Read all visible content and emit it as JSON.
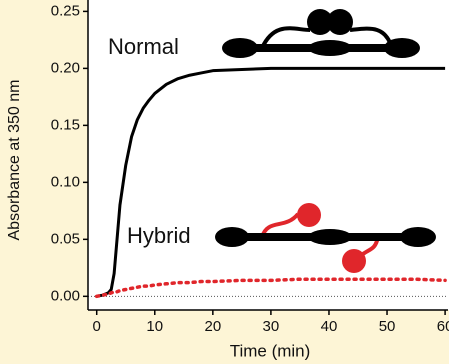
{
  "chart_data": {
    "type": "line",
    "x_label": "Time  (min)",
    "y_label": "Absorbance at 350 nm",
    "x": [
      0,
      1,
      2,
      2.5,
      3,
      3.5,
      4,
      5,
      6,
      7,
      8,
      9,
      10,
      12,
      14,
      16,
      18,
      20,
      25,
      30,
      35,
      40,
      45,
      50,
      55,
      60
    ],
    "series": [
      {
        "name": "Normal",
        "color": "#000000",
        "style": "solid",
        "values": [
          0.0,
          0.001,
          0.003,
          0.006,
          0.02,
          0.05,
          0.08,
          0.115,
          0.14,
          0.155,
          0.165,
          0.172,
          0.178,
          0.186,
          0.191,
          0.194,
          0.196,
          0.198,
          0.199,
          0.2,
          0.2,
          0.2,
          0.2,
          0.2,
          0.2,
          0.2
        ]
      },
      {
        "name": "Hybrid",
        "color": "#e0262b",
        "style": "dotted",
        "values": [
          0.0,
          0.001,
          0.002,
          0.003,
          0.004,
          0.004,
          0.005,
          0.006,
          0.007,
          0.008,
          0.009,
          0.009,
          0.01,
          0.011,
          0.012,
          0.012,
          0.013,
          0.013,
          0.014,
          0.014,
          0.015,
          0.015,
          0.015,
          0.015,
          0.015,
          0.014
        ]
      }
    ],
    "xlim": [
      -1.5,
      60.5
    ],
    "ylim": [
      -0.012,
      0.26
    ],
    "xticks": [
      0,
      10,
      20,
      30,
      40,
      50,
      60
    ],
    "yticks": [
      {
        "value": 0,
        "label": "0.00"
      },
      {
        "value": 0.05,
        "label": "0.05"
      },
      {
        "value": 0.1,
        "label": "0.10"
      },
      {
        "value": 0.15,
        "label": "0.15"
      },
      {
        "value": 0.2,
        "label": "0.20"
      },
      {
        "value": 0.25,
        "label": "0.25"
      }
    ]
  }
}
